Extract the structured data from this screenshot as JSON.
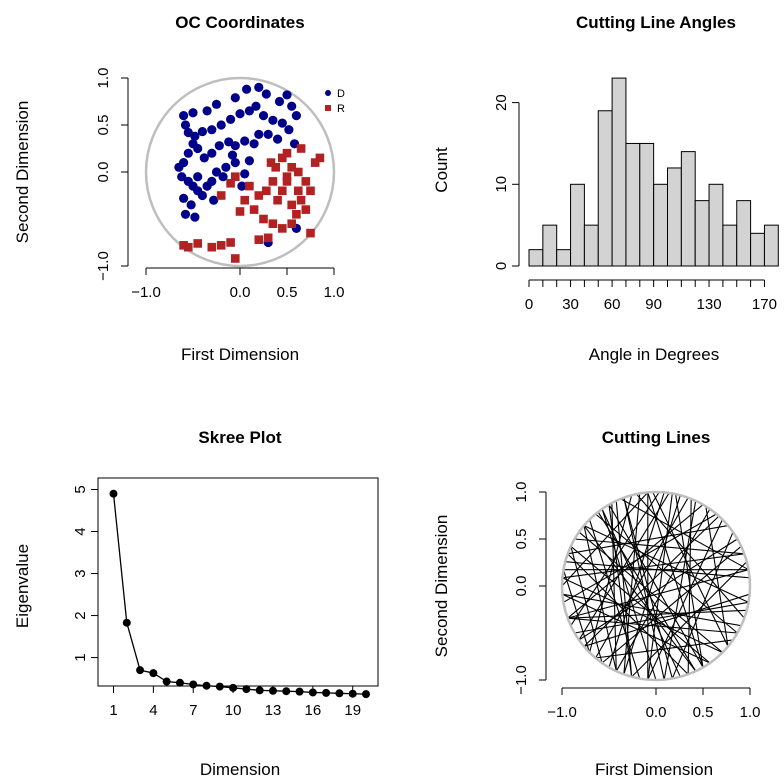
{
  "chart_data": [
    {
      "type": "scatter",
      "title": "OC Coordinates",
      "xlabel": "First Dimension",
      "ylabel": "Second Dimension",
      "xlim": [
        -1,
        1
      ],
      "ylim": [
        -1,
        1
      ],
      "x_ticks": [
        -1.0,
        0.0,
        0.5,
        1.0
      ],
      "x_tick_labels": [
        "−1.0",
        "0.0",
        "0.5",
        "1.0"
      ],
      "y_ticks": [
        -1.0,
        0.0,
        0.5,
        1.0
      ],
      "y_tick_labels": [
        "−1.0",
        "0.0",
        "0.5",
        "1.0"
      ],
      "unit_circle": true,
      "circle_color": "#bebebe",
      "legend_position": "top-right",
      "series": [
        {
          "name": "D",
          "marker": "circle",
          "color": "#00008b",
          "points": [
            [
              0.07,
              0.88
            ],
            [
              -0.05,
              0.79
            ],
            [
              0.2,
              0.9
            ],
            [
              0.28,
              0.83
            ],
            [
              0.42,
              0.75
            ],
            [
              0.5,
              0.82
            ],
            [
              0.55,
              0.7
            ],
            [
              0.6,
              0.6
            ],
            [
              -0.25,
              0.72
            ],
            [
              -0.5,
              0.63
            ],
            [
              -0.35,
              0.65
            ],
            [
              -0.6,
              0.6
            ],
            [
              -0.58,
              0.5
            ],
            [
              -0.55,
              0.42
            ],
            [
              -0.48,
              0.38
            ],
            [
              -0.4,
              0.43
            ],
            [
              -0.3,
              0.45
            ],
            [
              -0.2,
              0.5
            ],
            [
              -0.1,
              0.56
            ],
            [
              0.0,
              0.62
            ],
            [
              0.1,
              0.65
            ],
            [
              0.17,
              0.7
            ],
            [
              0.25,
              0.6
            ],
            [
              0.35,
              0.55
            ],
            [
              0.45,
              0.52
            ],
            [
              0.52,
              0.45
            ],
            [
              0.3,
              0.4
            ],
            [
              0.2,
              0.4
            ],
            [
              0.15,
              0.3
            ],
            [
              0.05,
              0.33
            ],
            [
              -0.05,
              0.28
            ],
            [
              -0.12,
              0.32
            ],
            [
              -0.22,
              0.28
            ],
            [
              -0.3,
              0.2
            ],
            [
              -0.38,
              0.15
            ],
            [
              -0.45,
              0.25
            ],
            [
              -0.5,
              0.3
            ],
            [
              -0.55,
              0.2
            ],
            [
              -0.6,
              0.1
            ],
            [
              -0.65,
              0.05
            ],
            [
              -0.62,
              -0.05
            ],
            [
              -0.55,
              -0.1
            ],
            [
              -0.5,
              -0.15
            ],
            [
              -0.45,
              -0.2
            ],
            [
              -0.4,
              -0.25
            ],
            [
              -0.35,
              -0.15
            ],
            [
              -0.3,
              -0.1
            ],
            [
              -0.25,
              0.0
            ],
            [
              -0.15,
              0.05
            ],
            [
              -0.05,
              0.1
            ],
            [
              -0.08,
              0.18
            ],
            [
              -0.18,
              -0.05
            ],
            [
              -0.28,
              -0.3
            ],
            [
              -0.45,
              -0.05
            ],
            [
              -0.52,
              -0.35
            ],
            [
              -0.6,
              -0.28
            ],
            [
              -0.58,
              -0.45
            ],
            [
              -0.48,
              -0.48
            ],
            [
              0.05,
              -0.02
            ],
            [
              0.1,
              0.12
            ],
            [
              0.4,
              0.35
            ],
            [
              0.58,
              0.3
            ],
            [
              0.3,
              -0.75
            ],
            [
              0.6,
              -0.6
            ],
            [
              0.02,
              -0.15
            ]
          ]
        },
        {
          "name": "R",
          "marker": "square",
          "color": "#b22222",
          "points": [
            [
              0.5,
              0.2
            ],
            [
              0.45,
              0.15
            ],
            [
              0.38,
              0.05
            ],
            [
              0.55,
              0.05
            ],
            [
              0.62,
              0.0
            ],
            [
              0.7,
              -0.1
            ],
            [
              0.75,
              -0.2
            ],
            [
              0.8,
              0.1
            ],
            [
              0.85,
              0.15
            ],
            [
              0.5,
              -0.1
            ],
            [
              0.45,
              -0.2
            ],
            [
              0.4,
              -0.3
            ],
            [
              0.55,
              -0.35
            ],
            [
              0.6,
              -0.45
            ],
            [
              0.65,
              -0.3
            ],
            [
              0.7,
              -0.4
            ],
            [
              0.35,
              -0.1
            ],
            [
              0.28,
              -0.2
            ],
            [
              0.2,
              -0.25
            ],
            [
              0.1,
              -0.15
            ],
            [
              0.05,
              -0.3
            ],
            [
              0.15,
              -0.4
            ],
            [
              0.25,
              -0.5
            ],
            [
              0.35,
              -0.55
            ],
            [
              0.45,
              -0.6
            ],
            [
              0.55,
              -0.55
            ],
            [
              0.62,
              -0.2
            ],
            [
              -0.05,
              -0.05
            ],
            [
              -0.1,
              -0.12
            ],
            [
              -0.2,
              -0.25
            ],
            [
              0.0,
              -0.42
            ],
            [
              0.75,
              -0.65
            ],
            [
              0.3,
              -0.7
            ],
            [
              0.2,
              -0.72
            ],
            [
              -0.1,
              -0.75
            ],
            [
              -0.2,
              -0.78
            ],
            [
              -0.3,
              -0.8
            ],
            [
              -0.45,
              -0.76
            ],
            [
              -0.55,
              -0.8
            ],
            [
              -0.6,
              -0.78
            ],
            [
              -0.05,
              -0.92
            ],
            [
              0.5,
              -0.05
            ],
            [
              0.33,
              0.1
            ],
            [
              0.65,
              0.25
            ]
          ]
        }
      ]
    },
    {
      "type": "bar",
      "title": "Cutting Line Angles",
      "xlabel": "Angle in Degrees",
      "ylabel": "Count",
      "bin_width": 10,
      "x_start": 0,
      "counts": [
        2,
        5,
        2,
        10,
        5,
        19,
        23,
        15,
        15,
        10,
        12,
        14,
        8,
        10,
        5,
        8,
        4,
        5
      ],
      "bar_color": "#d3d3d3",
      "xlim": [
        0,
        180
      ],
      "ylim": [
        0,
        24
      ],
      "x_ticks": [
        0,
        10,
        20,
        30,
        40,
        50,
        60,
        70,
        80,
        90,
        100,
        110,
        120,
        130,
        140,
        150,
        160,
        170
      ],
      "x_tick_labels": [
        "0",
        "30",
        "60",
        "90",
        "130",
        "170"
      ],
      "x_tick_label_positions": [
        0,
        30,
        60,
        90,
        130,
        170
      ],
      "y_ticks": [
        0,
        10,
        20
      ],
      "y_tick_labels": [
        "0",
        "10",
        "20"
      ]
    },
    {
      "type": "line",
      "title": "Skree Plot",
      "xlabel": "Dimension",
      "ylabel": "Eigenvalue",
      "x": [
        1,
        2,
        3,
        4,
        5,
        6,
        7,
        8,
        9,
        10,
        11,
        12,
        13,
        14,
        15,
        16,
        17,
        18,
        19,
        20
      ],
      "values": [
        4.9,
        1.83,
        0.7,
        0.63,
        0.43,
        0.4,
        0.36,
        0.33,
        0.31,
        0.28,
        0.25,
        0.22,
        0.21,
        0.2,
        0.19,
        0.17,
        0.16,
        0.15,
        0.14,
        0.13
      ],
      "xlim": [
        1,
        20
      ],
      "ylim": [
        0,
        5
      ],
      "x_ticks": [
        1,
        4,
        7,
        10,
        13,
        16,
        19
      ],
      "x_tick_labels": [
        "1",
        "4",
        "7",
        "10",
        "13",
        "16",
        "19"
      ],
      "y_ticks": [
        1,
        2,
        3,
        4,
        5
      ],
      "y_tick_labels": [
        "1",
        "2",
        "3",
        "4",
        "5"
      ]
    },
    {
      "type": "line",
      "title": "Cutting Lines",
      "xlabel": "First Dimension",
      "ylabel": "Second Dimension",
      "xlim": [
        -1,
        1
      ],
      "ylim": [
        -1,
        1
      ],
      "x_ticks": [
        -1.0,
        0.0,
        0.5,
        1.0
      ],
      "x_tick_labels": [
        "−1.0",
        "0.0",
        "0.5",
        "1.0"
      ],
      "y_ticks": [
        -1.0,
        0.0,
        0.5,
        1.0
      ],
      "y_tick_labels": [
        "−1.0",
        "0.0",
        "0.5",
        "1.0"
      ],
      "unit_circle": true,
      "circle_color": "#bebebe",
      "line_color": "#000000",
      "chord_endpoints_degrees": [
        [
          100,
          250
        ],
        [
          80,
          265
        ],
        [
          60,
          200
        ],
        [
          120,
          300
        ],
        [
          95,
          300
        ],
        [
          70,
          230
        ],
        [
          50,
          190
        ],
        [
          130,
          330
        ],
        [
          110,
          280
        ],
        [
          85,
          240
        ],
        [
          40,
          160
        ],
        [
          140,
          350
        ],
        [
          150,
          20
        ],
        [
          160,
          290
        ],
        [
          170,
          10
        ],
        [
          30,
          215
        ],
        [
          20,
          175
        ],
        [
          10,
          200
        ],
        [
          200,
          330
        ],
        [
          185,
          305
        ],
        [
          210,
          350
        ],
        [
          105,
          225
        ],
        [
          115,
          255
        ],
        [
          125,
          270
        ],
        [
          135,
          260
        ],
        [
          145,
          315
        ],
        [
          75,
          250
        ],
        [
          65,
          275
        ],
        [
          55,
          245
        ],
        [
          45,
          265
        ],
        [
          35,
          280
        ],
        [
          25,
          235
        ],
        [
          15,
          255
        ],
        [
          5,
          165
        ],
        [
          355,
          220
        ],
        [
          345,
          200
        ],
        [
          335,
          185
        ],
        [
          325,
          230
        ],
        [
          315,
          175
        ],
        [
          305,
          155
        ],
        [
          295,
          140
        ],
        [
          285,
          125
        ],
        [
          275,
          110
        ],
        [
          265,
          95
        ],
        [
          255,
          120
        ],
        [
          245,
          140
        ],
        [
          235,
          155
        ],
        [
          225,
          170
        ],
        [
          95,
          180
        ],
        [
          88,
          205
        ],
        [
          78,
          300
        ],
        [
          92,
          320
        ],
        [
          102,
          340
        ],
        [
          112,
          10
        ],
        [
          82,
          215
        ],
        [
          68,
          290
        ],
        [
          58,
          320
        ],
        [
          48,
          220
        ],
        [
          118,
          245
        ],
        [
          128,
          295
        ]
      ]
    }
  ]
}
